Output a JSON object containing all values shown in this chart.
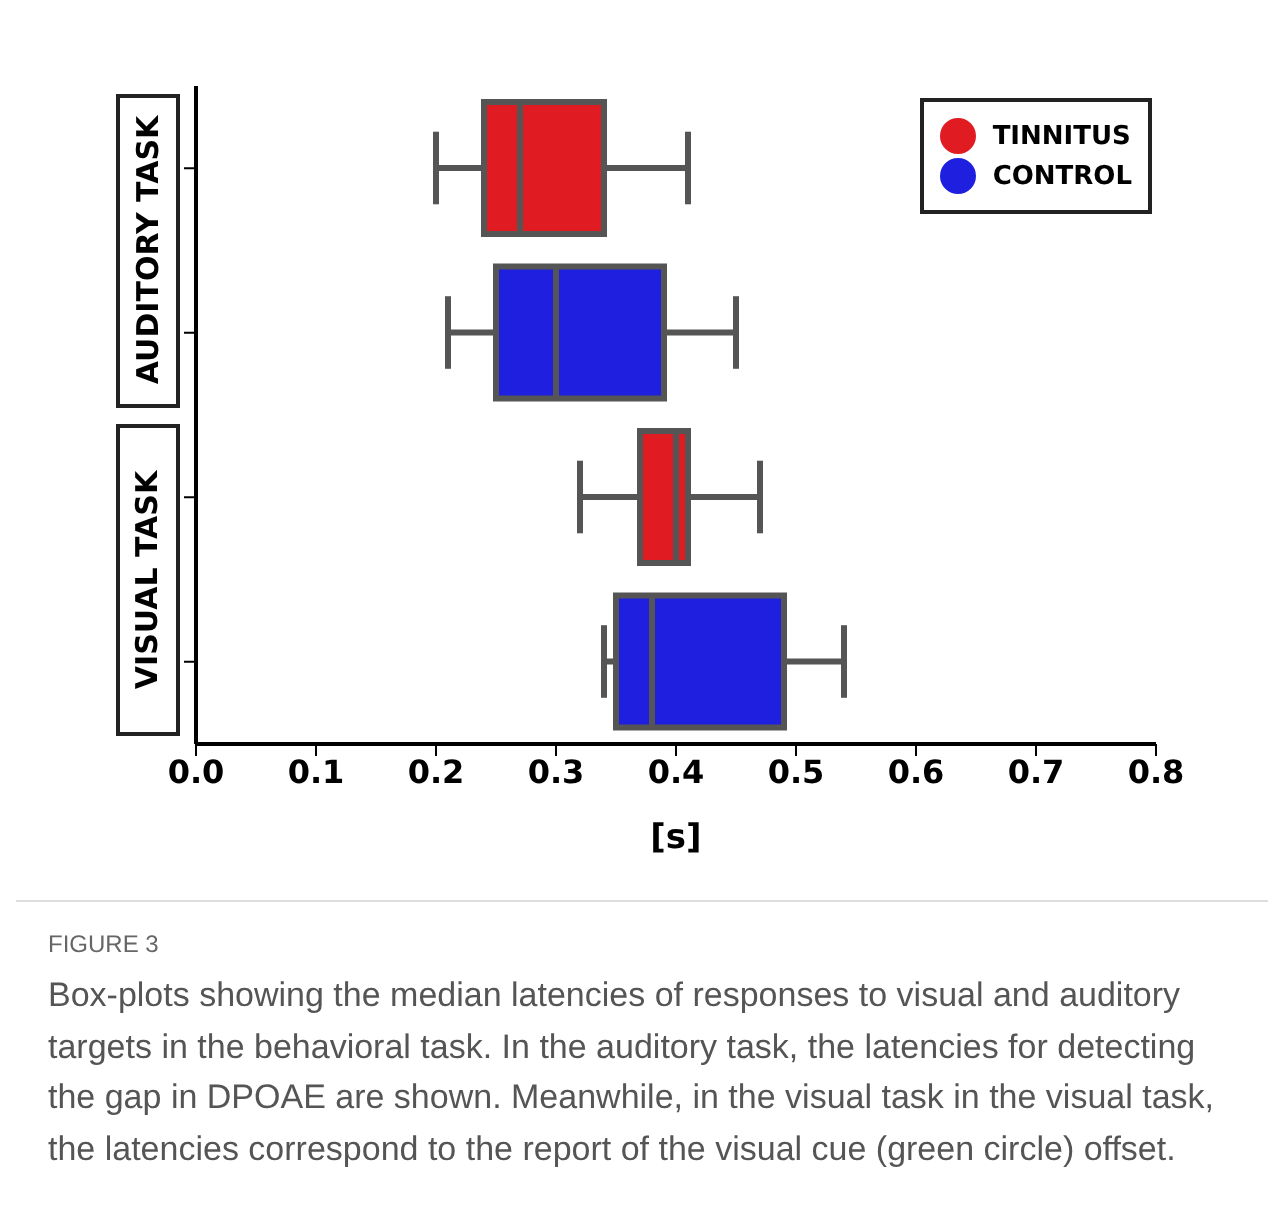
{
  "chart_data": {
    "type": "box",
    "orientation": "horizontal",
    "categories": [
      null,
      null,
      null,
      null
    ],
    "series": [
      {
        "name": "TINNITUS",
        "color": "#e01b22",
        "boxes": [
          {
            "low": 0.2,
            "q1": 0.24,
            "median": 0.27,
            "q3": 0.34,
            "high": 0.41
          },
          null,
          {
            "low": 0.32,
            "q1": 0.37,
            "median": 0.4,
            "q3": 0.41,
            "high": 0.47
          },
          null
        ]
      },
      {
        "name": "CONTROL",
        "color": "#1f1fe0",
        "boxes": [
          null,
          {
            "low": 0.21,
            "q1": 0.25,
            "median": 0.3,
            "q3": 0.39,
            "high": 0.45
          },
          null,
          {
            "low": 0.34,
            "q1": 0.35,
            "median": 0.38,
            "q3": 0.49,
            "high": 0.54
          }
        ]
      }
    ],
    "xlim": [
      0,
      0.8
    ],
    "xticks": [
      {
        "value": 0,
        "label": "0.0"
      },
      0.1,
      0.2,
      0.3,
      0.4,
      0.5,
      0.6,
      0.7,
      0.8
    ],
    "xlabel": "[s]",
    "legend": "top right",
    "grid": false,
    "annotations": [
      "AUDITORY TASK",
      "VISUAL TASK",
      "FIGURE 3",
      "Box-plots showing the median latencies of responses to visual and auditory targets in the behavioral task. In the auditory task, the latencies for detecting the gap in DPOAE are shown. Meanwhile, in the visual task in the visual task, the latencies correspond to the report of the visual cue (green circle) offset."
    ]
  }
}
